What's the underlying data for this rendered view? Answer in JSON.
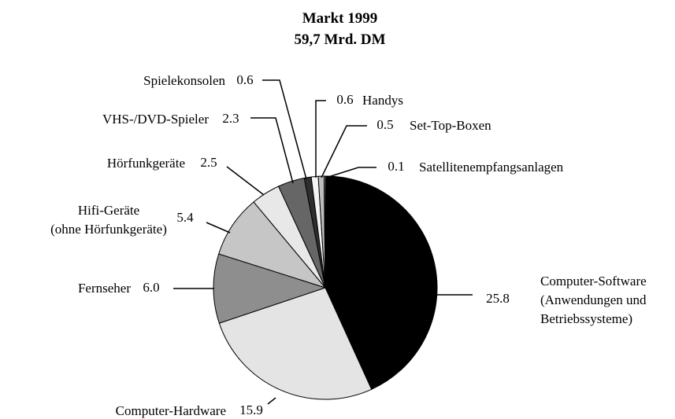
{
  "chart_data": {
    "type": "pie",
    "title": "Markt 1999\n59,7 Mrd. DM",
    "categories": [
      "Computer-Software\n(Anwendungen und\nBetriebssysteme)",
      "Computer-Hardware",
      "Fernseher",
      "Hifi-Geräte\n(ohne Hörfunkgeräte)",
      "Hörfunkgeräte",
      "VHS-/DVD-Spieler",
      "Spielekonsolen",
      "Handys",
      "Set-Top-Boxen",
      "Satellitenempfangsanlagen"
    ],
    "values": [
      25.8,
      15.9,
      6.0,
      5.4,
      2.5,
      2.3,
      0.6,
      0.6,
      0.5,
      0.1
    ],
    "value_labels": [
      "25.8",
      "15.9",
      "6.0",
      "5.4",
      "2.5",
      "2.3",
      "0.6",
      "0.6",
      "0.5",
      "0.1"
    ],
    "colors": [
      "#000000",
      "#e4e4e4",
      "#8e8e8e",
      "#c6c6c6",
      "#e8e8e8",
      "#666666",
      "#2e2e2e",
      "#f4f4f4",
      "#bdbdbd",
      "#ffffff"
    ]
  }
}
